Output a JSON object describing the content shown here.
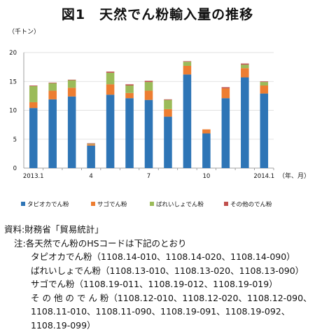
{
  "title": "図1　天然でん粉輸入量の推移",
  "chart_data": {
    "type": "bar",
    "stacked": true,
    "ylabel": "（千トン）",
    "xlabel": "（年、月）",
    "ylim": [
      0,
      20
    ],
    "yticks": [
      0,
      5,
      10,
      15,
      20
    ],
    "categories": [
      "2013.1",
      "2",
      "3",
      "4",
      "5",
      "6",
      "7",
      "8",
      "9",
      "10",
      "11",
      "12",
      "2014.1"
    ],
    "tick_labels": [
      "2013.1",
      "",
      "",
      "4",
      "",
      "",
      "7",
      "",
      "",
      "10",
      "",
      "",
      "2014.1"
    ],
    "series": [
      {
        "name": "タピオカでん粉",
        "color": "#2e75b6",
        "values": [
          10.4,
          11.9,
          12.4,
          3.9,
          12.7,
          12.1,
          11.8,
          8.9,
          16.2,
          6.0,
          12.1,
          15.7,
          12.9
        ]
      },
      {
        "name": "サゴでん粉",
        "color": "#ed7d31",
        "values": [
          1.0,
          1.5,
          1.5,
          0.2,
          1.8,
          0.9,
          1.6,
          1.3,
          1.5,
          0.7,
          1.7,
          1.6,
          1.4
        ]
      },
      {
        "name": "ばれいしょでん粉",
        "color": "#9bbb59",
        "values": [
          2.8,
          1.3,
          1.3,
          0.1,
          2.0,
          1.3,
          1.5,
          1.6,
          0.7,
          0.0,
          0.0,
          0.6,
          0.6
        ]
      },
      {
        "name": "その他のでん粉",
        "color": "#c0504d",
        "values": [
          0.1,
          0.1,
          0.1,
          0.1,
          0.2,
          0.2,
          0.2,
          0.1,
          0.1,
          0.0,
          0.2,
          0.2,
          0.1
        ]
      }
    ]
  },
  "notes": {
    "source": "資料:財務省「貿易統計」",
    "note_head": "注:各天然でん粉のHSコードは下記のとおり",
    "tapioca": "タピオカでん粉（1108.14-010、1108.14-020、1108.14-090）",
    "potato": "ばれいしょでん粉（1108.13-010、1108.13-020、1108.13-090）",
    "sago": "サゴでん粉（1108.19-011、1108.19-012、1108.19-019）",
    "other_1": "そ の 他 の で ん 粉（1108.12-010、1108.12-020、1108.12-090、",
    "other_2": "1108.11-010、1108.11-090、1108.19-091、1108.19-092、",
    "other_3": "1108.19-099）"
  }
}
